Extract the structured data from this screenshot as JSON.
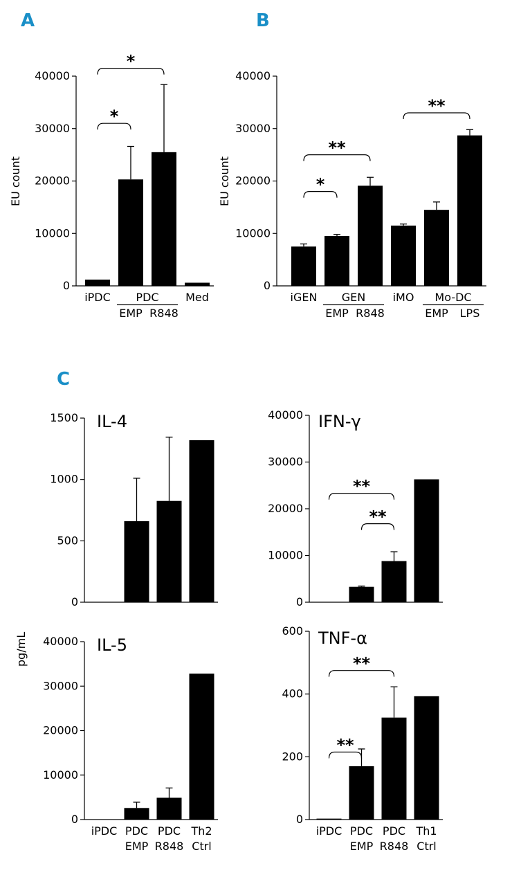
{
  "panel_labels": {
    "A": "A",
    "B": "B",
    "C": "C"
  },
  "shared_ylabel": "pg/mL",
  "chart_data": [
    {
      "id": "A",
      "type": "bar",
      "ylabel": "EU count",
      "ylim": [
        0,
        40000
      ],
      "yticks": [
        0,
        10000,
        20000,
        30000,
        40000
      ],
      "values": [
        1200,
        20300,
        25500,
        600
      ],
      "errors": [
        0,
        6300,
        12900,
        0
      ],
      "xlabels": [
        "iPDC",
        "",
        "",
        "Med"
      ],
      "groups": [
        {
          "label": "PDC",
          "from": 1,
          "to": 2,
          "sublabels": [
            "EMP",
            "R848"
          ]
        }
      ],
      "significance": [
        {
          "from": 0,
          "to": 1,
          "label": "*",
          "y": 31000
        },
        {
          "from": 0,
          "to": 2,
          "label": "*",
          "y": 41500
        }
      ]
    },
    {
      "id": "B",
      "type": "bar",
      "ylabel": "EU count",
      "ylim": [
        0,
        40000
      ],
      "yticks": [
        0,
        10000,
        20000,
        30000,
        40000
      ],
      "values": [
        7500,
        9500,
        19100,
        11500,
        14500,
        28700
      ],
      "errors": [
        500,
        300,
        1600,
        300,
        1500,
        1100
      ],
      "xlabels": [
        "iGEN",
        "",
        "",
        "iMO",
        "",
        ""
      ],
      "groups": [
        {
          "label": "GEN",
          "from": 1,
          "to": 2,
          "sublabels": [
            "EMP",
            "R848"
          ]
        },
        {
          "label": "Mo-DC",
          "from": 4,
          "to": 5,
          "sublabels": [
            "EMP",
            "LPS"
          ]
        }
      ],
      "significance": [
        {
          "from": 0,
          "to": 1,
          "label": "*",
          "y": 18000
        },
        {
          "from": 0,
          "to": 2,
          "label": "**",
          "y": 25000
        },
        {
          "from": 3,
          "to": 5,
          "label": "**",
          "y": 33000
        }
      ]
    },
    {
      "id": "IL-4",
      "type": "bar",
      "title": "IL-4",
      "ylim": [
        0,
        1500
      ],
      "yticks": [
        0,
        500,
        1000,
        1500
      ],
      "values": [
        0,
        660,
        825,
        1320
      ],
      "errors": [
        0,
        350,
        520,
        0
      ],
      "xlabels": [],
      "significance": []
    },
    {
      "id": "IFN-g",
      "type": "bar",
      "title": "IFN-γ",
      "ylim": [
        0,
        40000
      ],
      "yticks": [
        0,
        10000,
        20000,
        30000,
        40000
      ],
      "values": [
        0,
        3300,
        8800,
        26300
      ],
      "errors": [
        0,
        150,
        2000,
        0
      ],
      "xlabels": [],
      "significance": [
        {
          "from": 1,
          "to": 2,
          "label": "**",
          "y": 16800
        },
        {
          "from": 0,
          "to": 2,
          "label": "**",
          "y": 23300
        }
      ]
    },
    {
      "id": "IL-5",
      "type": "bar",
      "title": "IL-5",
      "ylim": [
        0,
        40000
      ],
      "yticks": [
        0,
        10000,
        20000,
        30000,
        40000
      ],
      "values": [
        0,
        2600,
        4900,
        32800
      ],
      "errors": [
        0,
        1300,
        2200,
        0
      ],
      "xlabels": [
        "iPDC",
        "PDC\nEMP",
        "PDC\nR848",
        "Th2\nCtrl"
      ],
      "significance": []
    },
    {
      "id": "TNF-a",
      "type": "bar",
      "title": "TNF-α",
      "ylim": [
        0,
        600
      ],
      "yticks": [
        0,
        200,
        400,
        600
      ],
      "values": [
        3,
        170,
        325,
        393
      ],
      "errors": [
        0,
        55,
        98,
        0
      ],
      "xlabels": [
        "iPDC",
        "PDC\nEMP",
        "PDC\nR848",
        "Th1\nCtrl"
      ],
      "significance": [
        {
          "from": 0,
          "to": 1,
          "label": "**",
          "y": 215
        },
        {
          "from": 0,
          "to": 2,
          "label": "**",
          "y": 475
        }
      ]
    }
  ]
}
